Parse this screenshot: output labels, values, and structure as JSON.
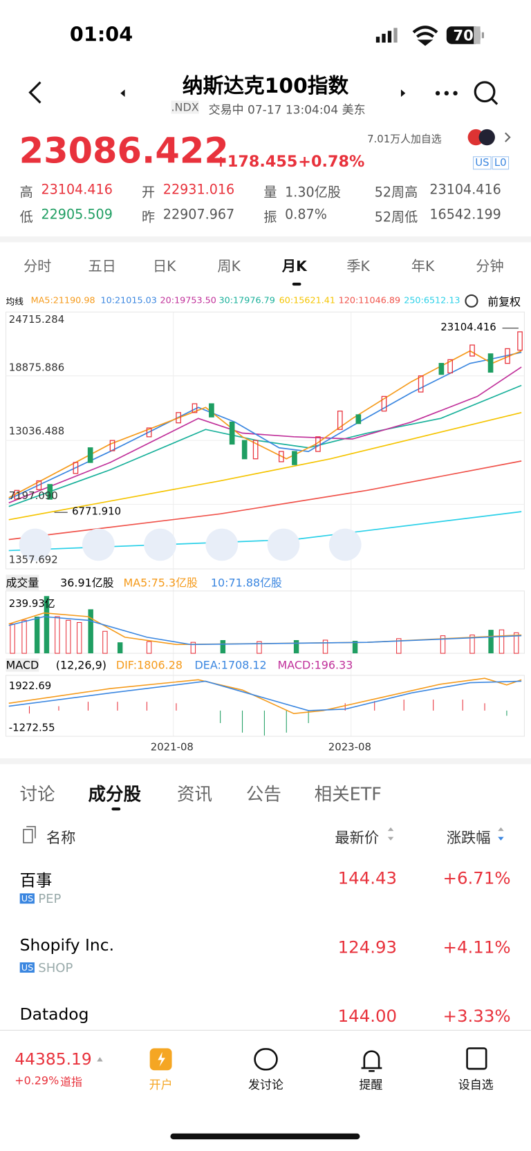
{
  "status": {
    "time": "01:04",
    "battery": "70"
  },
  "header": {
    "title": "纳斯达克100指数",
    "code": ".NDX",
    "state": "交易中 07-17 13:04:04 美东"
  },
  "quote": {
    "price": "23086.422",
    "change": "+178.455",
    "pct": "+0.78%",
    "followers": "7.01万人加自选",
    "badges": [
      "US",
      "L0"
    ],
    "stats": [
      [
        "高",
        "23104.416"
      ],
      [
        "开",
        "22931.016"
      ],
      [
        "量",
        "1.30亿股"
      ],
      [
        "52周高",
        "23104.416"
      ],
      [
        "低",
        "22905.509"
      ],
      [
        "昨",
        "22907.967"
      ],
      [
        "振",
        "0.87%"
      ],
      [
        "52周低",
        "16542.199"
      ]
    ]
  },
  "periods": [
    "分时",
    "五日",
    "日K",
    "周K",
    "月K",
    "季K",
    "年K",
    "分钟"
  ],
  "ma": {
    "label": "均线",
    "items": [
      "MA5:21190.98",
      "10:21015.03",
      "20:19753.50",
      "30:17976.79",
      "60:15621.41",
      "120:11046.89",
      "250:6512.13"
    ],
    "adjust": "前复权"
  },
  "price_axis": [
    "24715.284",
    "18875.886",
    "13036.488",
    "7197.090",
    "1357.692"
  ],
  "high_mark": "23104.416",
  "low_mark": "6771.910",
  "volume": {
    "label": "成交量",
    "value": "36.91亿股",
    "ma5": "MA5:75.3亿股",
    "ma10": "10:71.88亿股",
    "axis": "239.93亿"
  },
  "macd": {
    "label": "MACD",
    "params": "(12,26,9)",
    "dif": "DIF:1806.28",
    "dea": "DEA:1708.12",
    "macd": "MACD:196.33",
    "top": "1922.69",
    "bottom": "-1272.55"
  },
  "dates": [
    "2021-08",
    "2023-08"
  ],
  "tabs": [
    "讨论",
    "成分股",
    "资讯",
    "公告",
    "相关ETF"
  ],
  "table": {
    "header": [
      "名称",
      "最新价",
      "涨跌幅"
    ],
    "rows": [
      [
        "百事",
        "PEP",
        "144.43",
        "+6.71%"
      ],
      [
        "Shopify Inc.",
        "SHOP",
        "124.93",
        "+4.11%"
      ],
      [
        "Datadog",
        "",
        "144.00",
        "+3.33%"
      ]
    ],
    "market": "US"
  },
  "footer": {
    "index_value": "44385.19",
    "index_change": "+0.29%",
    "index_name": "道指",
    "actions": [
      "开户",
      "发讨论",
      "提醒",
      "设自选"
    ]
  }
}
